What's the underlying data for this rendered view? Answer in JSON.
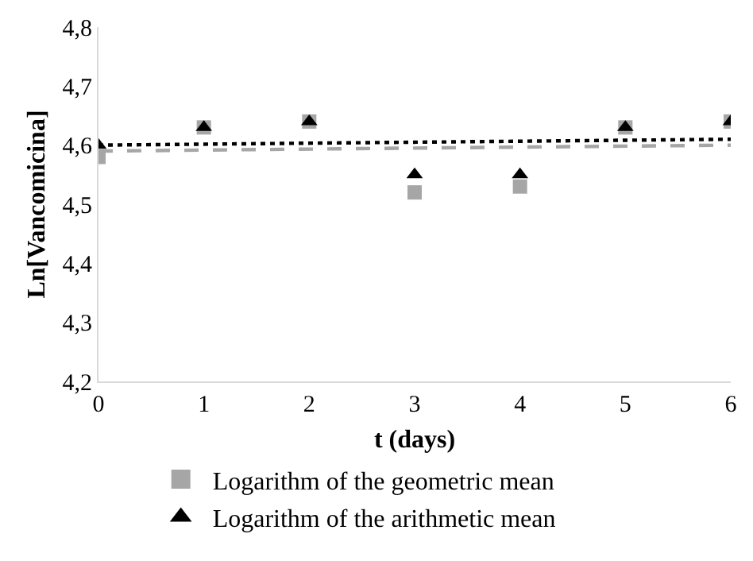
{
  "chart_data": {
    "type": "scatter",
    "xlabel": "t (days)",
    "ylabel": "Ln[Vancomicina]",
    "x": [
      0,
      1,
      2,
      3,
      4,
      5,
      6
    ],
    "series": [
      {
        "name": "Logarithm of the geometric mean",
        "color": "#a6a6a6",
        "marker": "square",
        "values": [
          4.58,
          4.63,
          4.64,
          4.52,
          4.53,
          4.63,
          4.64
        ]
      },
      {
        "name": "Logarithm of the arithmetic mean",
        "color": "#000000",
        "marker": "triangle",
        "values": [
          4.6,
          4.63,
          4.64,
          4.55,
          4.55,
          4.63,
          4.64
        ]
      },
      {
        "type": "line",
        "color": "#a6a6a6",
        "line_style": "dashed",
        "values": [
          4.59,
          null,
          null,
          null,
          null,
          null,
          4.6
        ]
      },
      {
        "type": "line",
        "color": "#000000",
        "line_style": "dotted",
        "values": [
          4.6,
          null,
          null,
          null,
          null,
          null,
          4.61
        ]
      }
    ],
    "xlim": [
      0,
      6
    ],
    "xticks": [
      0,
      1,
      2,
      3,
      4,
      5,
      6
    ],
    "ylim": [
      4.2,
      4.8
    ],
    "yticks": [
      {
        "value": 4.2,
        "label": "4,2"
      },
      {
        "value": 4.3,
        "label": "4,3"
      },
      {
        "value": 4.4,
        "label": "4,4"
      },
      {
        "value": 4.5,
        "label": "4,5"
      },
      {
        "value": 4.6,
        "label": "4,6"
      },
      {
        "value": 4.7,
        "label": "4,7"
      },
      {
        "value": 4.8,
        "label": "4,8"
      }
    ],
    "legend": "bottom"
  }
}
